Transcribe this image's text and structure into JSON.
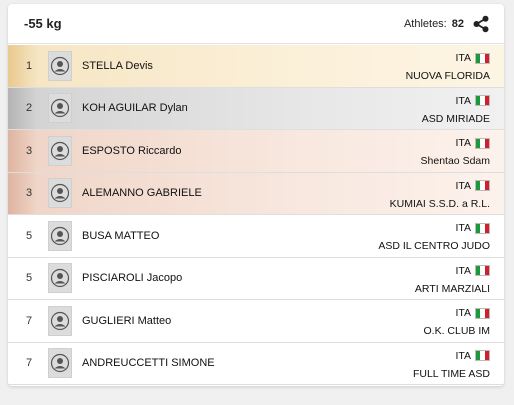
{
  "header": {
    "category": "-55 kg",
    "athletes_label": "Athletes:",
    "athletes_count": "82",
    "share_icon": "share-icon"
  },
  "colors": {
    "gold": "#e9c98f",
    "silver": "#b4b4b4",
    "bronze": "#deb4a0",
    "flag_green": "#1c9a3a",
    "flag_white": "#ffffff",
    "flag_red": "#d0202e"
  },
  "rows": [
    {
      "rank": "1",
      "name": "STELLA Devis",
      "nation": "ITA",
      "club": "NUOVA FLORIDA",
      "medal": "gold"
    },
    {
      "rank": "2",
      "name": "KOH AGUILAR Dylan",
      "nation": "ITA",
      "club": "ASD MIRIADE",
      "medal": "silver"
    },
    {
      "rank": "3",
      "name": "ESPOSTO Riccardo",
      "nation": "ITA",
      "club": "Shentao Sdam",
      "medal": "bronze"
    },
    {
      "rank": "3",
      "name": "ALEMANNO GABRIELE",
      "nation": "ITA",
      "club": "KUMIAI S.S.D. a R.L.",
      "medal": "bronze"
    },
    {
      "rank": "5",
      "name": "BUSA MATTEO",
      "nation": "ITA",
      "club": "ASD IL CENTRO JUDO",
      "medal": ""
    },
    {
      "rank": "5",
      "name": "PISCIAROLI Jacopo",
      "nation": "ITA",
      "club": "ARTI MARZIALI",
      "medal": ""
    },
    {
      "rank": "7",
      "name": "GUGLIERI Matteo",
      "nation": "ITA",
      "club": "O.K. CLUB IM",
      "medal": ""
    },
    {
      "rank": "7",
      "name": "ANDREUCCETTI SIMONE",
      "nation": "ITA",
      "club": "FULL TIME ASD",
      "medal": ""
    }
  ]
}
